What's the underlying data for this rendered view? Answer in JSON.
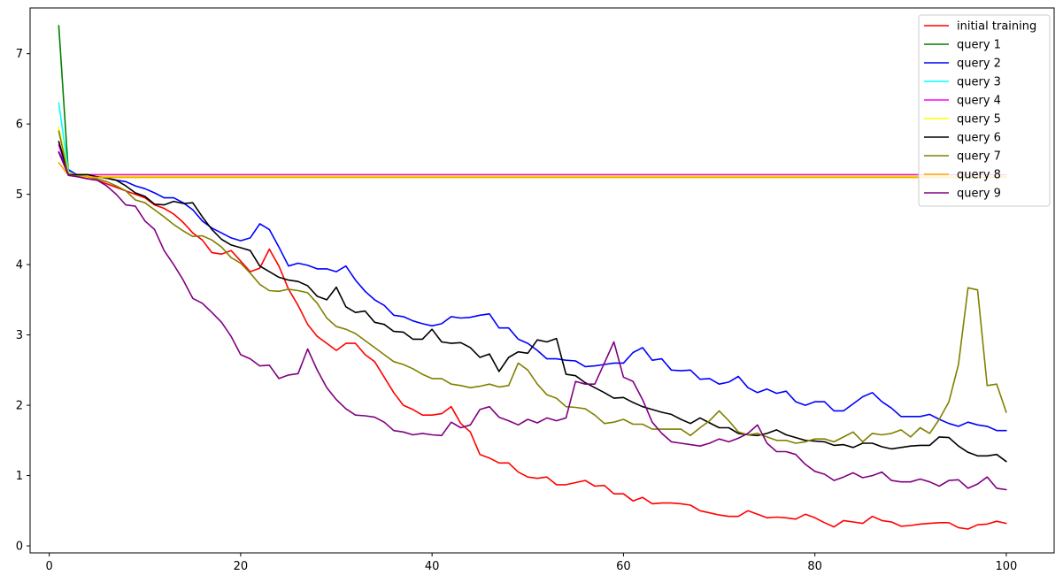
{
  "chart_data": {
    "type": "line",
    "title": "",
    "xlabel": "",
    "ylabel": "",
    "xlim": [
      -2,
      105
    ],
    "ylim": [
      -0.1,
      7.65
    ],
    "xticks": [
      0,
      20,
      40,
      60,
      80,
      100
    ],
    "yticks": [
      0,
      1,
      2,
      3,
      4,
      5,
      6,
      7
    ],
    "grid": false,
    "legend_position": "top-right",
    "series": [
      {
        "name": "initial training",
        "color": "#ff0000",
        "x": [
          1,
          2,
          3,
          4,
          5,
          6,
          7,
          8,
          9,
          10,
          11,
          12,
          13,
          14,
          15,
          16,
          17,
          18,
          19,
          20,
          21,
          22,
          23,
          24,
          25,
          26,
          27,
          28,
          29,
          30,
          31,
          32,
          33,
          34,
          35,
          36,
          37,
          38,
          39,
          40,
          41,
          42,
          43,
          44,
          45,
          46,
          47,
          48,
          49,
          50,
          51,
          52,
          53,
          54,
          55,
          56,
          57,
          58,
          59,
          60,
          61,
          62,
          63,
          64,
          65,
          66,
          67,
          68,
          69,
          70,
          71,
          72,
          73,
          74,
          75,
          76,
          77,
          78,
          79,
          80,
          81,
          82,
          83,
          84,
          85,
          86,
          87,
          88,
          89,
          90,
          91,
          92,
          93,
          94,
          95,
          96,
          97,
          98,
          99,
          100
        ],
        "y": [
          5.6,
          5.28,
          5.25,
          5.22,
          5.2,
          5.15,
          5.1,
          5.05,
          5.0,
          4.95,
          4.85,
          4.8,
          4.72,
          4.6,
          4.45,
          4.35,
          4.17,
          4.15,
          4.2,
          4.05,
          3.9,
          3.95,
          4.22,
          3.98,
          3.65,
          3.42,
          3.15,
          2.98,
          2.88,
          2.78,
          2.88,
          2.88,
          2.72,
          2.62,
          2.4,
          2.18,
          2.0,
          1.94,
          1.86,
          1.86,
          1.88,
          1.98,
          1.74,
          1.62,
          1.3,
          1.25,
          1.18,
          1.18,
          1.05,
          0.98,
          0.96,
          0.98,
          0.87,
          0.87,
          0.9,
          0.93,
          0.85,
          0.86,
          0.74,
          0.74,
          0.64,
          0.69,
          0.6,
          0.61,
          0.61,
          0.6,
          0.58,
          0.5,
          0.47,
          0.44,
          0.42,
          0.42,
          0.5,
          0.45,
          0.4,
          0.41,
          0.4,
          0.38,
          0.45,
          0.4,
          0.33,
          0.27,
          0.36,
          0.34,
          0.32,
          0.42,
          0.36,
          0.34,
          0.28,
          0.29,
          0.31,
          0.32,
          0.33,
          0.33,
          0.26,
          0.24,
          0.3,
          0.31,
          0.35,
          0.32
        ]
      },
      {
        "name": "query 1",
        "color": "#008000",
        "x": [
          1,
          2,
          3,
          4,
          5,
          10,
          20,
          30,
          40,
          50,
          60,
          70,
          80,
          90,
          100
        ],
        "y": [
          7.4,
          5.3,
          5.26,
          5.25,
          5.25,
          5.25,
          5.25,
          5.25,
          5.25,
          5.25,
          5.25,
          5.25,
          5.25,
          5.25,
          5.25
        ]
      },
      {
        "name": "query 2",
        "color": "#0000ff",
        "x": [
          1,
          2,
          3,
          4,
          5,
          6,
          7,
          8,
          9,
          10,
          11,
          12,
          13,
          14,
          15,
          16,
          17,
          18,
          19,
          20,
          21,
          22,
          23,
          24,
          25,
          26,
          27,
          28,
          29,
          30,
          31,
          32,
          33,
          34,
          35,
          36,
          37,
          38,
          39,
          40,
          41,
          42,
          43,
          44,
          45,
          46,
          47,
          48,
          49,
          50,
          51,
          52,
          53,
          54,
          55,
          56,
          57,
          58,
          59,
          60,
          61,
          62,
          63,
          64,
          65,
          66,
          67,
          68,
          69,
          70,
          71,
          72,
          73,
          74,
          75,
          76,
          77,
          78,
          79,
          80,
          81,
          82,
          83,
          84,
          85,
          86,
          87,
          88,
          89,
          90,
          91,
          92,
          93,
          94,
          95,
          96,
          97,
          98,
          99,
          100
        ],
        "y": [
          5.6,
          5.35,
          5.27,
          5.26,
          5.25,
          5.23,
          5.2,
          5.18,
          5.12,
          5.08,
          5.02,
          4.95,
          4.95,
          4.88,
          4.78,
          4.62,
          4.52,
          4.45,
          4.38,
          4.34,
          4.38,
          4.58,
          4.5,
          4.25,
          3.98,
          4.02,
          3.99,
          3.94,
          3.94,
          3.9,
          3.98,
          3.78,
          3.62,
          3.5,
          3.42,
          3.28,
          3.26,
          3.2,
          3.16,
          3.13,
          3.16,
          3.26,
          3.24,
          3.25,
          3.28,
          3.3,
          3.1,
          3.1,
          2.94,
          2.88,
          2.78,
          2.66,
          2.66,
          2.64,
          2.63,
          2.55,
          2.56,
          2.58,
          2.6,
          2.6,
          2.75,
          2.82,
          2.64,
          2.66,
          2.5,
          2.49,
          2.5,
          2.37,
          2.38,
          2.3,
          2.33,
          2.41,
          2.25,
          2.18,
          2.23,
          2.17,
          2.2,
          2.05,
          2.0,
          2.05,
          2.05,
          1.92,
          1.92,
          2.02,
          2.12,
          2.18,
          2.05,
          1.96,
          1.84,
          1.84,
          1.84,
          1.87,
          1.8,
          1.74,
          1.7,
          1.76,
          1.72,
          1.7,
          1.64,
          1.64
        ]
      },
      {
        "name": "query 3",
        "color": "#00ffff",
        "x": [
          1,
          2,
          3,
          4,
          5,
          10,
          20,
          30,
          40,
          50,
          60,
          70,
          80,
          90,
          100
        ],
        "y": [
          6.3,
          5.32,
          5.27,
          5.26,
          5.26,
          5.26,
          5.26,
          5.26,
          5.26,
          5.26,
          5.26,
          5.26,
          5.26,
          5.26,
          5.26
        ]
      },
      {
        "name": "query 4",
        "color": "#ff00ff",
        "x": [
          1,
          2,
          3,
          4,
          5,
          10,
          20,
          30,
          40,
          50,
          60,
          70,
          80,
          90,
          100
        ],
        "y": [
          5.7,
          5.3,
          5.28,
          5.28,
          5.28,
          5.28,
          5.28,
          5.28,
          5.28,
          5.28,
          5.28,
          5.28,
          5.28,
          5.28,
          5.28
        ]
      },
      {
        "name": "query 5",
        "color": "#ffff00",
        "x": [
          1,
          2,
          3,
          4,
          5,
          10,
          20,
          30,
          40,
          50,
          60,
          70,
          80,
          90,
          100
        ],
        "y": [
          5.95,
          5.3,
          5.27,
          5.26,
          5.26,
          5.26,
          5.26,
          5.26,
          5.26,
          5.26,
          5.26,
          5.26,
          5.26,
          5.26,
          5.26
        ]
      },
      {
        "name": "query 6",
        "color": "#000000",
        "x": [
          1,
          2,
          3,
          4,
          5,
          6,
          7,
          8,
          9,
          10,
          11,
          12,
          13,
          14,
          15,
          16,
          17,
          18,
          19,
          20,
          21,
          22,
          23,
          24,
          25,
          26,
          27,
          28,
          29,
          30,
          31,
          32,
          33,
          34,
          35,
          36,
          37,
          38,
          39,
          40,
          41,
          42,
          43,
          44,
          45,
          46,
          47,
          48,
          49,
          50,
          51,
          52,
          53,
          54,
          55,
          56,
          57,
          58,
          59,
          60,
          61,
          62,
          63,
          64,
          65,
          66,
          67,
          68,
          69,
          70,
          71,
          72,
          73,
          74,
          75,
          76,
          77,
          78,
          79,
          80,
          81,
          82,
          83,
          84,
          85,
          86,
          87,
          88,
          89,
          90,
          91,
          92,
          93,
          94,
          95,
          96,
          97,
          98,
          99,
          100
        ],
        "y": [
          5.75,
          5.28,
          5.28,
          5.28,
          5.25,
          5.23,
          5.2,
          5.12,
          5.02,
          4.97,
          4.86,
          4.85,
          4.9,
          4.87,
          4.88,
          4.68,
          4.5,
          4.36,
          4.28,
          4.24,
          4.2,
          3.98,
          3.9,
          3.82,
          3.78,
          3.76,
          3.7,
          3.55,
          3.5,
          3.68,
          3.4,
          3.32,
          3.34,
          3.18,
          3.15,
          3.05,
          3.04,
          2.94,
          2.94,
          3.08,
          2.9,
          2.88,
          2.89,
          2.82,
          2.68,
          2.73,
          2.48,
          2.68,
          2.76,
          2.74,
          2.93,
          2.9,
          2.95,
          2.44,
          2.42,
          2.32,
          2.25,
          2.18,
          2.1,
          2.11,
          2.04,
          1.98,
          1.94,
          1.9,
          1.87,
          1.8,
          1.74,
          1.82,
          1.75,
          1.68,
          1.68,
          1.6,
          1.58,
          1.57,
          1.6,
          1.65,
          1.58,
          1.54,
          1.5,
          1.49,
          1.48,
          1.43,
          1.44,
          1.4,
          1.46,
          1.46,
          1.41,
          1.38,
          1.4,
          1.42,
          1.43,
          1.43,
          1.55,
          1.54,
          1.42,
          1.33,
          1.28,
          1.28,
          1.3,
          1.2
        ]
      },
      {
        "name": "query 7",
        "color": "#808000",
        "x": [
          1,
          2,
          3,
          4,
          5,
          6,
          7,
          8,
          9,
          10,
          11,
          12,
          13,
          14,
          15,
          16,
          17,
          18,
          19,
          20,
          21,
          22,
          23,
          24,
          25,
          26,
          27,
          28,
          29,
          30,
          31,
          32,
          33,
          34,
          35,
          36,
          37,
          38,
          39,
          40,
          41,
          42,
          43,
          44,
          45,
          46,
          47,
          48,
          49,
          50,
          51,
          52,
          53,
          54,
          55,
          56,
          57,
          58,
          59,
          60,
          61,
          62,
          63,
          64,
          65,
          66,
          67,
          68,
          69,
          70,
          71,
          72,
          73,
          74,
          75,
          76,
          77,
          78,
          79,
          80,
          81,
          82,
          83,
          84,
          85,
          86,
          87,
          88,
          89,
          90,
          91,
          92,
          93,
          94,
          95,
          96,
          97,
          98,
          99,
          100
        ],
        "y": [
          5.9,
          5.27,
          5.26,
          5.25,
          5.22,
          5.18,
          5.12,
          5.05,
          4.92,
          4.88,
          4.78,
          4.68,
          4.57,
          4.48,
          4.4,
          4.41,
          4.35,
          4.25,
          4.1,
          4.02,
          3.88,
          3.72,
          3.63,
          3.62,
          3.65,
          3.63,
          3.6,
          3.45,
          3.24,
          3.12,
          3.08,
          3.02,
          2.92,
          2.82,
          2.72,
          2.62,
          2.58,
          2.52,
          2.44,
          2.38,
          2.38,
          2.3,
          2.28,
          2.25,
          2.27,
          2.3,
          2.26,
          2.28,
          2.6,
          2.5,
          2.3,
          2.15,
          2.1,
          1.98,
          1.97,
          1.95,
          1.86,
          1.74,
          1.76,
          1.8,
          1.73,
          1.73,
          1.66,
          1.66,
          1.66,
          1.66,
          1.57,
          1.68,
          1.78,
          1.92,
          1.78,
          1.62,
          1.58,
          1.6,
          1.55,
          1.5,
          1.5,
          1.46,
          1.48,
          1.52,
          1.52,
          1.48,
          1.55,
          1.62,
          1.48,
          1.6,
          1.58,
          1.6,
          1.65,
          1.55,
          1.68,
          1.6,
          1.8,
          2.05,
          2.58,
          3.67,
          3.64,
          2.28,
          2.3,
          1.9
        ]
      },
      {
        "name": "query 8",
        "color": "#ffa500",
        "x": [
          1,
          2,
          3,
          4,
          5,
          10,
          20,
          30,
          40,
          50,
          60,
          70,
          80,
          90,
          100
        ],
        "y": [
          5.45,
          5.27,
          5.25,
          5.25,
          5.24,
          5.24,
          5.24,
          5.24,
          5.24,
          5.24,
          5.24,
          5.24,
          5.24,
          5.24,
          5.24
        ]
      },
      {
        "name": "query 9",
        "color": "#800080",
        "x": [
          1,
          2,
          3,
          4,
          5,
          6,
          7,
          8,
          9,
          10,
          11,
          12,
          13,
          14,
          15,
          16,
          17,
          18,
          19,
          20,
          21,
          22,
          23,
          24,
          25,
          26,
          27,
          28,
          29,
          30,
          31,
          32,
          33,
          34,
          35,
          36,
          37,
          38,
          39,
          40,
          41,
          42,
          43,
          44,
          45,
          46,
          47,
          48,
          49,
          50,
          51,
          52,
          53,
          54,
          55,
          56,
          57,
          58,
          59,
          60,
          61,
          62,
          63,
          64,
          65,
          66,
          67,
          68,
          69,
          70,
          71,
          72,
          73,
          74,
          75,
          76,
          77,
          78,
          79,
          80,
          81,
          82,
          83,
          84,
          85,
          86,
          87,
          88,
          89,
          90,
          91,
          92,
          93,
          94,
          95,
          96,
          97,
          98,
          99,
          100
        ],
        "y": [
          5.6,
          5.27,
          5.25,
          5.22,
          5.2,
          5.12,
          5.0,
          4.85,
          4.83,
          4.62,
          4.5,
          4.2,
          4.0,
          3.78,
          3.52,
          3.45,
          3.32,
          3.18,
          2.98,
          2.72,
          2.66,
          2.56,
          2.57,
          2.38,
          2.43,
          2.45,
          2.8,
          2.5,
          2.25,
          2.08,
          1.95,
          1.86,
          1.85,
          1.83,
          1.76,
          1.64,
          1.62,
          1.58,
          1.6,
          1.58,
          1.57,
          1.76,
          1.68,
          1.72,
          1.94,
          1.98,
          1.83,
          1.78,
          1.72,
          1.8,
          1.75,
          1.82,
          1.78,
          1.82,
          2.34,
          2.3,
          2.3,
          2.6,
          2.9,
          2.4,
          2.34,
          2.08,
          1.76,
          1.6,
          1.48,
          1.46,
          1.44,
          1.42,
          1.46,
          1.52,
          1.48,
          1.53,
          1.6,
          1.72,
          1.46,
          1.34,
          1.34,
          1.3,
          1.16,
          1.06,
          1.02,
          0.93,
          0.98,
          1.04,
          0.97,
          1.0,
          1.05,
          0.93,
          0.91,
          0.91,
          0.95,
          0.91,
          0.85,
          0.93,
          0.94,
          0.82,
          0.88,
          0.98,
          0.82,
          0.8
        ]
      }
    ]
  }
}
